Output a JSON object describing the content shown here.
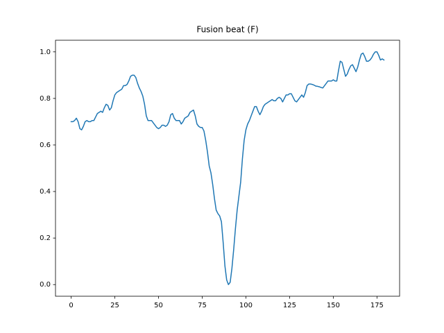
{
  "chart_data": {
    "type": "line",
    "title": "Fusion beat (F)",
    "x": [
      0,
      1,
      2,
      3,
      4,
      5,
      6,
      7,
      8,
      9,
      10,
      11,
      12,
      13,
      14,
      15,
      16,
      17,
      18,
      19,
      20,
      21,
      22,
      23,
      24,
      25,
      26,
      27,
      28,
      29,
      30,
      31,
      32,
      33,
      34,
      35,
      36,
      37,
      38,
      39,
      40,
      41,
      42,
      43,
      44,
      45,
      46,
      47,
      48,
      49,
      50,
      51,
      52,
      53,
      54,
      55,
      56,
      57,
      58,
      59,
      60,
      61,
      62,
      63,
      64,
      65,
      66,
      67,
      68,
      69,
      70,
      71,
      72,
      73,
      74,
      75,
      76,
      77,
      78,
      79,
      80,
      81,
      82,
      83,
      84,
      85,
      86,
      87,
      88,
      89,
      90,
      91,
      92,
      93,
      94,
      95,
      96,
      97,
      98,
      99,
      100,
      101,
      102,
      103,
      104,
      105,
      106,
      107,
      108,
      109,
      110,
      111,
      112,
      113,
      114,
      115,
      116,
      117,
      118,
      119,
      120,
      121,
      122,
      123,
      124,
      125,
      126,
      127,
      128,
      129,
      130,
      131,
      132,
      133,
      134,
      135,
      136,
      137,
      138,
      139,
      140,
      141,
      142,
      143,
      144,
      145,
      146,
      147,
      148,
      149,
      150,
      151,
      152,
      153,
      154,
      155,
      156,
      157,
      158,
      159,
      160,
      161,
      162,
      163,
      164,
      165,
      166,
      167,
      168,
      169,
      170,
      171,
      172,
      173,
      174,
      175,
      176,
      177,
      178,
      179
    ],
    "values": [
      0.7,
      0.7,
      0.705,
      0.715,
      0.7,
      0.67,
      0.665,
      0.68,
      0.7,
      0.705,
      0.7,
      0.7,
      0.705,
      0.705,
      0.72,
      0.735,
      0.74,
      0.745,
      0.74,
      0.76,
      0.775,
      0.77,
      0.75,
      0.76,
      0.79,
      0.815,
      0.825,
      0.83,
      0.835,
      0.84,
      0.855,
      0.855,
      0.86,
      0.875,
      0.895,
      0.9,
      0.9,
      0.89,
      0.865,
      0.845,
      0.83,
      0.81,
      0.775,
      0.725,
      0.705,
      0.705,
      0.705,
      0.695,
      0.685,
      0.675,
      0.67,
      0.675,
      0.685,
      0.685,
      0.68,
      0.685,
      0.7,
      0.73,
      0.735,
      0.715,
      0.705,
      0.705,
      0.705,
      0.69,
      0.7,
      0.715,
      0.72,
      0.725,
      0.74,
      0.745,
      0.75,
      0.725,
      0.69,
      0.68,
      0.675,
      0.675,
      0.66,
      0.62,
      0.57,
      0.51,
      0.48,
      0.43,
      0.37,
      0.32,
      0.305,
      0.295,
      0.27,
      0.18,
      0.08,
      0.02,
      0.0,
      0.01,
      0.07,
      0.15,
      0.24,
      0.32,
      0.38,
      0.44,
      0.54,
      0.62,
      0.665,
      0.69,
      0.705,
      0.725,
      0.745,
      0.765,
      0.765,
      0.745,
      0.73,
      0.745,
      0.765,
      0.775,
      0.78,
      0.785,
      0.79,
      0.795,
      0.79,
      0.79,
      0.8,
      0.805,
      0.8,
      0.785,
      0.8,
      0.815,
      0.815,
      0.82,
      0.82,
      0.805,
      0.79,
      0.785,
      0.795,
      0.805,
      0.815,
      0.805,
      0.825,
      0.855,
      0.862,
      0.862,
      0.86,
      0.857,
      0.853,
      0.852,
      0.85,
      0.847,
      0.845,
      0.855,
      0.865,
      0.875,
      0.875,
      0.875,
      0.88,
      0.875,
      0.875,
      0.92,
      0.96,
      0.955,
      0.925,
      0.895,
      0.905,
      0.925,
      0.94,
      0.945,
      0.93,
      0.915,
      0.935,
      0.965,
      0.99,
      0.995,
      0.98,
      0.96,
      0.96,
      0.965,
      0.975,
      0.99,
      1.0,
      1.0,
      0.985,
      0.965,
      0.97,
      0.965
    ],
    "color": "#1f77b4",
    "xlim": [
      -8.95,
      187.95
    ],
    "xticks": [
      0,
      25,
      50,
      75,
      100,
      125,
      150,
      175
    ],
    "ylim": [
      -0.05,
      1.05
    ],
    "yticks": [
      {
        "value": 0,
        "label": "0.0"
      },
      0.2,
      0.4,
      0.6,
      0.8,
      {
        "value": 1,
        "label": "1.0"
      }
    ],
    "grid": false
  }
}
